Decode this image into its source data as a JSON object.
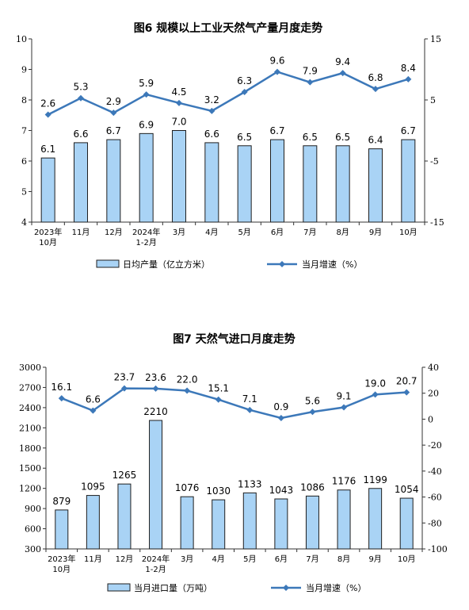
{
  "chart_data": [
    {
      "type": "bar",
      "title": "图6 规模以上工业天然气产量月度走势",
      "categories": [
        [
          "2023年",
          "10月"
        ],
        [
          "11月"
        ],
        [
          "12月"
        ],
        [
          "2024年",
          "1-2月"
        ],
        [
          "3月"
        ],
        [
          "4月"
        ],
        [
          "5月"
        ],
        [
          "6月"
        ],
        [
          "7月"
        ],
        [
          "8月"
        ],
        [
          "9月"
        ],
        [
          "10月"
        ]
      ],
      "bar_series": {
        "name": "日均产量（亿立方米）",
        "values": [
          6.1,
          6.6,
          6.7,
          6.9,
          7.0,
          6.6,
          6.5,
          6.7,
          6.5,
          6.5,
          6.4,
          6.7
        ],
        "labels": [
          "6.1",
          "6.6",
          "6.7",
          "6.9",
          "7.0",
          "6.6",
          "6.5",
          "6.7",
          "6.5",
          "6.5",
          "6.4",
          "6.7"
        ],
        "color": "#a9d3f5",
        "stroke": "#1f1f1f"
      },
      "line_series": {
        "name": "当月增速（%）",
        "values": [
          2.6,
          5.3,
          2.9,
          5.9,
          4.5,
          3.2,
          6.3,
          9.6,
          7.9,
          9.4,
          6.8,
          8.4
        ],
        "labels": [
          "2.6",
          "5.3",
          "2.9",
          "5.9",
          "4.5",
          "3.2",
          "6.3",
          "9.6",
          "7.9",
          "9.4",
          "6.8",
          "8.4"
        ],
        "color": "#3c78b9"
      },
      "y_left": {
        "range": [
          4,
          10
        ],
        "ticks": [
          "4",
          "5",
          "6",
          "7",
          "8",
          "9",
          "10"
        ]
      },
      "y_right": {
        "range": [
          -15,
          15
        ],
        "ticks": [
          "-15",
          "-5",
          "5",
          "15"
        ]
      },
      "legend_position": "bottom"
    },
    {
      "type": "bar",
      "title": "图7 天然气进口月度走势",
      "categories": [
        [
          "2023年",
          "10月"
        ],
        [
          "11月"
        ],
        [
          "12月"
        ],
        [
          "2024年",
          "1-2月"
        ],
        [
          "3月"
        ],
        [
          "4月"
        ],
        [
          "5月"
        ],
        [
          "6月"
        ],
        [
          "7月"
        ],
        [
          "8月"
        ],
        [
          "9月"
        ],
        [
          "10月"
        ]
      ],
      "bar_series": {
        "name": "当月进口量（万吨）",
        "values": [
          879,
          1095,
          1265,
          2210,
          1076,
          1030,
          1133,
          1043,
          1086,
          1176,
          1199,
          1054
        ],
        "labels": [
          "879",
          "1095",
          "1265",
          "2210",
          "1076",
          "1030",
          "1133",
          "1043",
          "1086",
          "1176",
          "1199",
          "1054"
        ],
        "color": "#a9d3f5",
        "stroke": "#1f1f1f"
      },
      "line_series": {
        "name": "当月增速（%）",
        "values": [
          16.1,
          6.6,
          23.7,
          23.6,
          22.0,
          15.1,
          7.1,
          0.9,
          5.6,
          9.1,
          19.0,
          20.7
        ],
        "labels": [
          "16.1",
          "6.6",
          "23.7",
          "23.6",
          "22.0",
          "15.1",
          "7.1",
          "0.9",
          "5.6",
          "9.1",
          "19.0",
          "20.7"
        ],
        "color": "#3c78b9"
      },
      "y_left": {
        "range": [
          300,
          3000
        ],
        "ticks": [
          "300",
          "600",
          "900",
          "1200",
          "1500",
          "1800",
          "2100",
          "2400",
          "2700",
          "3000"
        ]
      },
      "y_right": {
        "range": [
          -100,
          40
        ],
        "ticks": [
          "-100",
          "-80",
          "-60",
          "-40",
          "-20",
          "0",
          "20",
          "40"
        ]
      },
      "legend_position": "bottom"
    }
  ]
}
